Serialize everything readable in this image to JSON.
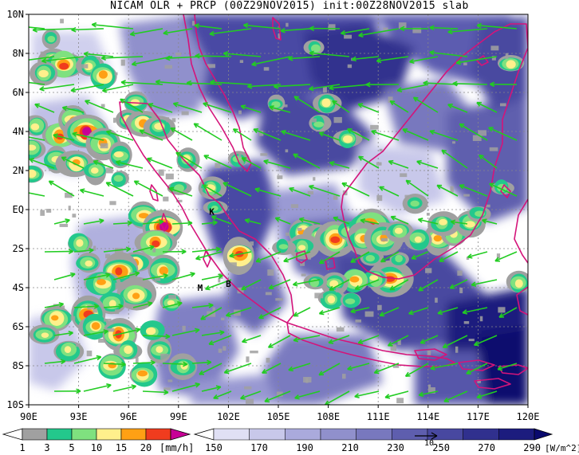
{
  "title": "NICAM OLR + PRCP (00Z29NOV2015) init:00Z28NOV2015 slab",
  "lon_ticks": [
    "90E",
    "93E",
    "96E",
    "99E",
    "102E",
    "105E",
    "108E",
    "111E",
    "114E",
    "117E",
    "120E"
  ],
  "lat_ticks": [
    "10N",
    "8N",
    "6N",
    "4N",
    "2N",
    "EQ",
    "2S",
    "4S",
    "6S",
    "8S",
    "10S"
  ],
  "station_labels": [
    {
      "text": "K",
      "lon": 101.0,
      "lat": -0.1
    },
    {
      "text": "M",
      "lon": 100.3,
      "lat": -4.0
    },
    {
      "text": "B",
      "lon": 102.0,
      "lat": -3.8
    }
  ],
  "vector_ref_label": "10",
  "prcp_colorbar": {
    "labels": [
      "1",
      "3",
      "5",
      "10",
      "15",
      "20"
    ],
    "unit": "[mm/h]",
    "colors": [
      "#a0a0a0",
      "#23c88c",
      "#7fe17f",
      "#fff08c",
      "#ffa014",
      "#f03c1e",
      "#c80096"
    ]
  },
  "olr_colorbar": {
    "labels": [
      "150",
      "170",
      "190",
      "210",
      "230",
      "250",
      "270",
      "290"
    ],
    "unit": "[W/m^2]",
    "colors": [
      "#ffffff",
      "#e0e0f4",
      "#c8c8ea",
      "#aaaadc",
      "#9090cc",
      "#7878be",
      "#5e5eae",
      "#4848a0",
      "#30308e",
      "#1c1c7e",
      "#0a0a6e"
    ]
  },
  "colors": {
    "vector": "#22cc22",
    "coastline": "#d4147a",
    "grid": "#888888"
  }
}
